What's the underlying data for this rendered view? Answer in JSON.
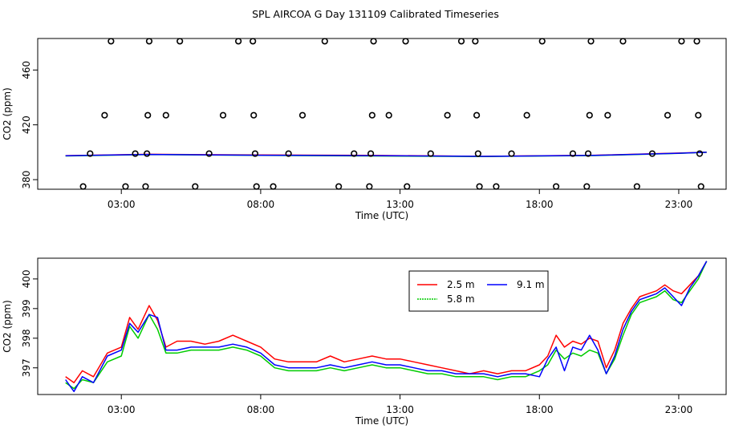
{
  "title": "SPL AIRCOA G  Day 131109  Calibrated Timeseries",
  "chart_data": [
    {
      "type": "scatter",
      "xlabel": "Time (UTC)",
      "ylabel": "CO2 (ppm)",
      "xlim": [
        0,
        24.7
      ],
      "ylim": [
        373,
        483
      ],
      "x_ticks": [
        {
          "value": 3,
          "label": "03:00"
        },
        {
          "value": 8,
          "label": "08:00"
        },
        {
          "value": 13,
          "label": "13:00"
        },
        {
          "value": 18,
          "label": "18:00"
        },
        {
          "value": 23,
          "label": "23:00"
        }
      ],
      "y_ticks": [
        {
          "value": 380,
          "label": "380"
        },
        {
          "value": 420,
          "label": "420"
        },
        {
          "value": 460,
          "label": "460"
        }
      ],
      "markers": [
        [
          1.63,
          375
        ],
        [
          1.88,
          399
        ],
        [
          2.4,
          427
        ],
        [
          2.63,
          481
        ],
        [
          3.15,
          375
        ],
        [
          3.5,
          399
        ],
        [
          3.87,
          375
        ],
        [
          3.92,
          399
        ],
        [
          3.95,
          427
        ],
        [
          4.0,
          481
        ],
        [
          4.6,
          427
        ],
        [
          5.1,
          481
        ],
        [
          5.65,
          375
        ],
        [
          6.15,
          399
        ],
        [
          6.65,
          427
        ],
        [
          7.2,
          481
        ],
        [
          7.72,
          481
        ],
        [
          7.75,
          427
        ],
        [
          7.8,
          399
        ],
        [
          7.85,
          375
        ],
        [
          8.45,
          375
        ],
        [
          9.0,
          399
        ],
        [
          9.5,
          427
        ],
        [
          10.3,
          481
        ],
        [
          10.8,
          375
        ],
        [
          11.35,
          399
        ],
        [
          11.9,
          375
        ],
        [
          11.95,
          399
        ],
        [
          12.0,
          427
        ],
        [
          12.05,
          481
        ],
        [
          12.6,
          427
        ],
        [
          13.2,
          481
        ],
        [
          13.25,
          375
        ],
        [
          14.1,
          399
        ],
        [
          14.7,
          427
        ],
        [
          15.2,
          481
        ],
        [
          15.7,
          481
        ],
        [
          15.75,
          427
        ],
        [
          15.8,
          399
        ],
        [
          15.85,
          375
        ],
        [
          16.45,
          375
        ],
        [
          17.0,
          399
        ],
        [
          17.55,
          427
        ],
        [
          18.1,
          481
        ],
        [
          18.6,
          375
        ],
        [
          19.2,
          399
        ],
        [
          19.7,
          375
        ],
        [
          19.75,
          399
        ],
        [
          19.8,
          427
        ],
        [
          19.85,
          481
        ],
        [
          20.45,
          427
        ],
        [
          21.0,
          481
        ],
        [
          21.5,
          375
        ],
        [
          22.05,
          399
        ],
        [
          22.6,
          427
        ],
        [
          23.1,
          481
        ],
        [
          23.65,
          481
        ],
        [
          23.7,
          427
        ],
        [
          23.75,
          399
        ],
        [
          23.8,
          375
        ]
      ],
      "series": [
        {
          "name": "2.5 m",
          "color": "#ff0000",
          "x": [
            1,
            4,
            8,
            12,
            16,
            20,
            23,
            24
          ],
          "y": [
            397.5,
            398.5,
            398.0,
            397.7,
            397.0,
            397.8,
            399.4,
            400.0
          ]
        },
        {
          "name": "5.8 m",
          "color": "#00cc00",
          "x": [
            1,
            4,
            8,
            12,
            16,
            20,
            23,
            24
          ],
          "y": [
            397.3,
            398.3,
            397.7,
            397.3,
            396.9,
            397.6,
            399.2,
            400.0
          ]
        },
        {
          "name": "9.1 m",
          "color": "#0000ff",
          "x": [
            1,
            4,
            8,
            12,
            16,
            20,
            23,
            24
          ],
          "y": [
            397.4,
            398.4,
            397.8,
            397.5,
            397.0,
            397.7,
            399.3,
            400.0
          ]
        }
      ]
    },
    {
      "type": "line",
      "xlabel": "Time (UTC)",
      "ylabel": "CO2 (ppm)",
      "xlim": [
        0,
        24.7
      ],
      "ylim": [
        396.1,
        400.7
      ],
      "x_ticks": [
        {
          "value": 3,
          "label": "03:00"
        },
        {
          "value": 8,
          "label": "08:00"
        },
        {
          "value": 13,
          "label": "13:00"
        },
        {
          "value": 18,
          "label": "18:00"
        },
        {
          "value": 23,
          "label": "23:00"
        }
      ],
      "y_ticks": [
        {
          "value": 397,
          "label": "397"
        },
        {
          "value": 398,
          "label": "398"
        },
        {
          "value": 399,
          "label": "399"
        },
        {
          "value": 400,
          "label": "400"
        }
      ],
      "legend": {
        "position": "top-center",
        "entries": [
          {
            "label": "2.5 m",
            "color": "#ff0000"
          },
          {
            "label": "5.8 m",
            "color": "#00cc00"
          },
          {
            "label": "9.1 m",
            "color": "#0000ff"
          }
        ]
      },
      "series": [
        {
          "name": "2.5 m",
          "color": "#ff0000",
          "x": [
            1.0,
            1.3,
            1.6,
            2.0,
            2.5,
            3.0,
            3.3,
            3.6,
            4.0,
            4.3,
            4.6,
            5.0,
            5.5,
            6.0,
            6.5,
            7.0,
            7.5,
            8.0,
            8.5,
            9.0,
            9.5,
            10.0,
            10.5,
            11.0,
            11.5,
            12.0,
            12.5,
            13.0,
            13.5,
            14.0,
            14.5,
            15.0,
            15.5,
            16.0,
            16.5,
            17.0,
            17.5,
            18.0,
            18.3,
            18.6,
            18.9,
            19.2,
            19.5,
            19.8,
            20.1,
            20.4,
            20.7,
            21.0,
            21.3,
            21.6,
            21.9,
            22.2,
            22.5,
            22.8,
            23.1,
            23.4,
            23.7,
            24.0
          ],
          "y": [
            396.7,
            396.5,
            396.9,
            396.7,
            397.5,
            397.7,
            398.7,
            398.3,
            399.1,
            398.6,
            397.7,
            397.9,
            397.9,
            397.8,
            397.9,
            398.1,
            397.9,
            397.7,
            397.3,
            397.2,
            397.2,
            397.2,
            397.4,
            397.2,
            397.3,
            397.4,
            397.3,
            397.3,
            397.2,
            397.1,
            397.0,
            396.9,
            396.8,
            396.9,
            396.8,
            396.9,
            396.9,
            397.1,
            397.4,
            398.1,
            397.7,
            397.9,
            397.8,
            398.0,
            397.9,
            397.0,
            397.6,
            398.5,
            399.0,
            399.4,
            399.5,
            399.6,
            399.8,
            399.6,
            399.5,
            399.8,
            400.1,
            400.6
          ]
        },
        {
          "name": "5.8 m",
          "color": "#00cc00",
          "x": [
            1.0,
            1.3,
            1.6,
            2.0,
            2.5,
            3.0,
            3.3,
            3.6,
            4.0,
            4.3,
            4.6,
            5.0,
            5.5,
            6.0,
            6.5,
            7.0,
            7.5,
            8.0,
            8.5,
            9.0,
            9.5,
            10.0,
            10.5,
            11.0,
            11.5,
            12.0,
            12.5,
            13.0,
            13.5,
            14.0,
            14.5,
            15.0,
            15.5,
            16.0,
            16.5,
            17.0,
            17.5,
            18.0,
            18.3,
            18.6,
            18.9,
            19.2,
            19.5,
            19.8,
            20.1,
            20.4,
            20.7,
            21.0,
            21.3,
            21.6,
            21.9,
            22.2,
            22.5,
            22.8,
            23.1,
            23.4,
            23.7,
            24.0
          ],
          "y": [
            396.5,
            396.3,
            396.6,
            396.5,
            397.2,
            397.4,
            398.4,
            398.0,
            398.8,
            398.3,
            397.5,
            397.5,
            397.6,
            397.6,
            397.6,
            397.7,
            397.6,
            397.4,
            397.0,
            396.9,
            396.9,
            396.9,
            397.0,
            396.9,
            397.0,
            397.1,
            397.0,
            397.0,
            396.9,
            396.8,
            396.8,
            396.7,
            396.7,
            396.7,
            396.6,
            396.7,
            396.7,
            396.9,
            397.1,
            397.6,
            397.3,
            397.5,
            397.4,
            397.6,
            397.5,
            396.8,
            397.3,
            398.1,
            398.8,
            399.2,
            399.3,
            399.4,
            399.6,
            399.3,
            399.2,
            399.6,
            400.0,
            400.6
          ]
        },
        {
          "name": "9.1 m",
          "color": "#0000ff",
          "x": [
            1.0,
            1.3,
            1.6,
            2.0,
            2.5,
            3.0,
            3.3,
            3.6,
            4.0,
            4.3,
            4.6,
            5.0,
            5.5,
            6.0,
            6.5,
            7.0,
            7.5,
            8.0,
            8.5,
            9.0,
            9.5,
            10.0,
            10.5,
            11.0,
            11.5,
            12.0,
            12.5,
            13.0,
            13.5,
            14.0,
            14.5,
            15.0,
            15.5,
            16.0,
            16.5,
            17.0,
            17.5,
            18.0,
            18.3,
            18.6,
            18.9,
            19.2,
            19.5,
            19.8,
            20.1,
            20.4,
            20.7,
            21.0,
            21.3,
            21.6,
            21.9,
            22.2,
            22.5,
            22.8,
            23.1,
            23.4,
            23.7,
            24.0
          ],
          "y": [
            396.6,
            396.2,
            396.7,
            396.5,
            397.4,
            397.6,
            398.5,
            398.2,
            398.8,
            398.7,
            397.6,
            397.6,
            397.7,
            397.7,
            397.7,
            397.8,
            397.7,
            397.5,
            397.1,
            397.0,
            397.0,
            397.0,
            397.1,
            397.0,
            397.1,
            397.2,
            397.1,
            397.1,
            397.0,
            396.9,
            396.9,
            396.8,
            396.8,
            396.8,
            396.7,
            396.8,
            396.8,
            396.7,
            397.3,
            397.7,
            396.9,
            397.7,
            397.6,
            398.1,
            397.6,
            396.8,
            397.4,
            398.3,
            398.9,
            399.3,
            399.4,
            399.5,
            399.7,
            399.4,
            399.1,
            399.7,
            400.1,
            400.6
          ]
        }
      ]
    }
  ]
}
